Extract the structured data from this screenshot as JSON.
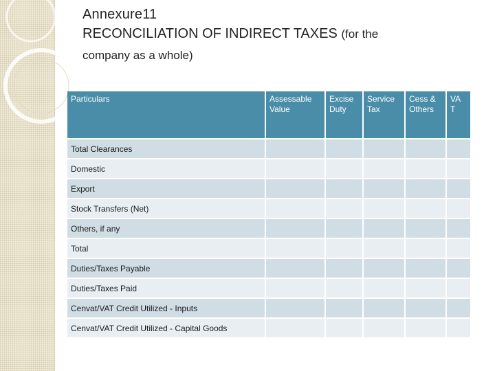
{
  "slide": {
    "title_line1": "Annexure11",
    "title_line2": "RECONCILIATION OF INDIRECT TAXES",
    "title_line2_suffix": "(for the",
    "title_line3": "company as a whole)"
  },
  "table": {
    "headers": [
      "Particulars",
      "Assessable Value",
      "Excise Duty",
      "Service Tax",
      "Cess & Others",
      "VA T"
    ],
    "rows": [
      {
        "label": "Total Clearances",
        "cells": [
          "",
          "",
          "",
          "",
          ""
        ]
      },
      {
        "label": "Domestic",
        "cells": [
          "",
          "",
          "",
          "",
          ""
        ]
      },
      {
        "label": "Export",
        "cells": [
          "",
          "",
          "",
          "",
          ""
        ]
      },
      {
        "label": "Stock Transfers (Net)",
        "cells": [
          "",
          "",
          "",
          "",
          ""
        ]
      },
      {
        "label": "Others, if any",
        "cells": [
          "",
          "",
          "",
          "",
          ""
        ]
      },
      {
        "label": "Total",
        "cells": [
          "",
          "",
          "",
          "",
          ""
        ]
      },
      {
        "label": "Duties/Taxes Payable",
        "cells": [
          "",
          "",
          "",
          "",
          ""
        ]
      },
      {
        "label": "Duties/Taxes Paid",
        "cells": [
          "",
          "",
          "",
          "",
          ""
        ]
      },
      {
        "label": "Cenvat/VAT Credit Utilized - Inputs",
        "cells": [
          "",
          "",
          "",
          "",
          ""
        ]
      },
      {
        "label": "Cenvat/VAT Credit Utilized - Capital Goods",
        "cells": [
          "",
          "",
          "",
          "",
          ""
        ]
      }
    ]
  },
  "colors": {
    "header_fill": "#4a8da8",
    "row_fill_dark": "#d0dde5",
    "row_fill_light": "#e8eef2",
    "side_band": "#efe9d6"
  }
}
